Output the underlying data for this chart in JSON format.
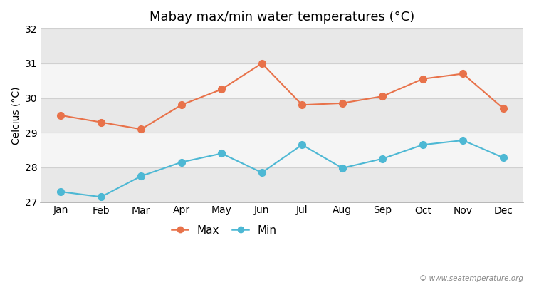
{
  "title": "Mabay max/min water temperatures (°C)",
  "ylabel": "Celcius (°C)",
  "months": [
    "Jan",
    "Feb",
    "Mar",
    "Apr",
    "May",
    "Jun",
    "Jul",
    "Aug",
    "Sep",
    "Oct",
    "Nov",
    "Dec"
  ],
  "max_temps": [
    29.5,
    29.3,
    29.1,
    29.8,
    30.25,
    31.0,
    29.8,
    29.85,
    30.05,
    30.55,
    30.7,
    29.7
  ],
  "min_temps": [
    27.3,
    27.15,
    27.75,
    28.15,
    28.4,
    27.85,
    28.65,
    27.98,
    28.25,
    28.65,
    28.78,
    28.28
  ],
  "max_color": "#e8724a",
  "min_color": "#4db8d4",
  "marker": "o",
  "markersize": 7,
  "ylim": [
    27,
    32
  ],
  "yticks": [
    27,
    28,
    29,
    30,
    31,
    32
  ],
  "bg_color": "#ffffff",
  "band_colors": [
    "#e8e8e8",
    "#f5f5f5"
  ],
  "grid_line_color": "#d0d0d0",
  "watermark": "© www.seatemperature.org",
  "legend_labels": [
    "Max",
    "Min"
  ]
}
